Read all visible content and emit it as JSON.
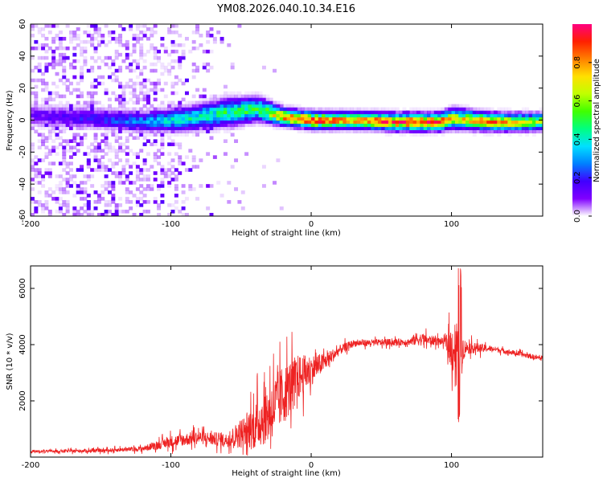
{
  "title": "YM08.2026.040.10.34.E16",
  "colors": {
    "snr_line": "#ee2222",
    "axis": "#000000",
    "background": "#ffffff"
  },
  "chart_data": [
    {
      "type": "heatmap",
      "name": "spectrogram",
      "xlabel": "Height of straight line (km)",
      "ylabel": "Frequency (Hz)",
      "xlim": [
        -200,
        165
      ],
      "ylim": [
        -60,
        60
      ],
      "x_ticks": [
        "-200",
        "-100",
        "0",
        "100"
      ],
      "x_tick_values": [
        -200,
        -100,
        0,
        100
      ],
      "y_ticks": [
        "-60",
        "-40",
        "-20",
        "0",
        "20",
        "40",
        "60"
      ],
      "y_tick_values": [
        -60,
        -40,
        -20,
        0,
        20,
        40,
        60
      ],
      "colorbar": {
        "label": "Normalized spectral amplitude",
        "range": [
          0,
          1
        ],
        "ticks": [
          "0.0",
          "0.2",
          "0.4",
          "0.6",
          "0.8"
        ],
        "tick_values": [
          0.0,
          0.2,
          0.4,
          0.6,
          0.8
        ],
        "colormap": [
          "#ffffff",
          "#8000ff",
          "#4000ff",
          "#0080ff",
          "#00e0ff",
          "#00ff80",
          "#40ff00",
          "#c0ff00",
          "#ffe000",
          "#ff8000",
          "#ff2000",
          "#ff0080"
        ]
      },
      "ridge": [
        {
          "x": -200,
          "center": 2,
          "half_width": 7,
          "amplitude": 0.12
        },
        {
          "x": -150,
          "center": 0,
          "half_width": 6,
          "amplitude": 0.2
        },
        {
          "x": -120,
          "center": -2,
          "half_width": 6,
          "amplitude": 0.3
        },
        {
          "x": -90,
          "center": 0,
          "half_width": 7,
          "amplitude": 0.4
        },
        {
          "x": -60,
          "center": 4,
          "half_width": 8,
          "amplitude": 0.45
        },
        {
          "x": -40,
          "center": 6,
          "half_width": 7,
          "amplitude": 0.5
        },
        {
          "x": -20,
          "center": 1,
          "half_width": 5,
          "amplitude": 0.75
        },
        {
          "x": 0,
          "center": -1,
          "half_width": 5,
          "amplitude": 0.85
        },
        {
          "x": 30,
          "center": -1,
          "half_width": 5,
          "amplitude": 0.7
        },
        {
          "x": 60,
          "center": -2,
          "half_width": 5,
          "amplitude": 0.85
        },
        {
          "x": 90,
          "center": -2,
          "half_width": 5,
          "amplitude": 0.9
        },
        {
          "x": 100,
          "center": 0,
          "half_width": 6,
          "amplitude": 0.6
        },
        {
          "x": 130,
          "center": -2,
          "half_width": 5,
          "amplitude": 0.8
        },
        {
          "x": 165,
          "center": -2,
          "half_width": 5,
          "amplitude": 0.55
        }
      ],
      "noise": {
        "x_from": -200,
        "x_to": -60,
        "density": "dense scatter fading toward -60 km"
      }
    },
    {
      "type": "line",
      "name": "snr",
      "xlabel": "Height of straight line (km)",
      "ylabel": "SNR (10 * v/v)",
      "xlim": [
        -200,
        165
      ],
      "ylim": [
        0,
        6800
      ],
      "x_ticks": [
        "-200",
        "-100",
        "0",
        "100"
      ],
      "x_tick_values": [
        -200,
        -100,
        0,
        100
      ],
      "y_ticks": [
        "2000",
        "4000",
        "6000"
      ],
      "y_tick_values": [
        2000,
        4000,
        6000
      ],
      "series": [
        {
          "name": "SNR",
          "color": "#ee2222",
          "envelope": [
            {
              "x": -200,
              "mean": 200,
              "spread": 80
            },
            {
              "x": -150,
              "mean": 230,
              "spread": 100
            },
            {
              "x": -120,
              "mean": 300,
              "spread": 150
            },
            {
              "x": -100,
              "mean": 550,
              "spread": 350
            },
            {
              "x": -80,
              "mean": 700,
              "spread": 400
            },
            {
              "x": -60,
              "mean": 600,
              "spread": 400
            },
            {
              "x": -40,
              "mean": 1100,
              "spread": 1400
            },
            {
              "x": -30,
              "mean": 1600,
              "spread": 1800
            },
            {
              "x": -20,
              "mean": 2200,
              "spread": 1800
            },
            {
              "x": -10,
              "mean": 2800,
              "spread": 1400
            },
            {
              "x": 0,
              "mean": 3100,
              "spread": 900
            },
            {
              "x": 10,
              "mean": 3400,
              "spread": 500
            },
            {
              "x": 20,
              "mean": 3800,
              "spread": 300
            },
            {
              "x": 30,
              "mean": 4050,
              "spread": 200
            },
            {
              "x": 70,
              "mean": 4100,
              "spread": 200
            },
            {
              "x": 75,
              "mean": 4200,
              "spread": 400
            },
            {
              "x": 95,
              "mean": 4100,
              "spread": 200
            },
            {
              "x": 103,
              "mean": 3800,
              "spread": 2000
            },
            {
              "x": 110,
              "mean": 3900,
              "spread": 400
            },
            {
              "x": 130,
              "mean": 3850,
              "spread": 150
            },
            {
              "x": 165,
              "mean": 3500,
              "spread": 150
            }
          ],
          "peak": {
            "x": 106,
            "value": 6800
          },
          "trough": {
            "x": 105,
            "value": 1200
          }
        }
      ]
    }
  ]
}
